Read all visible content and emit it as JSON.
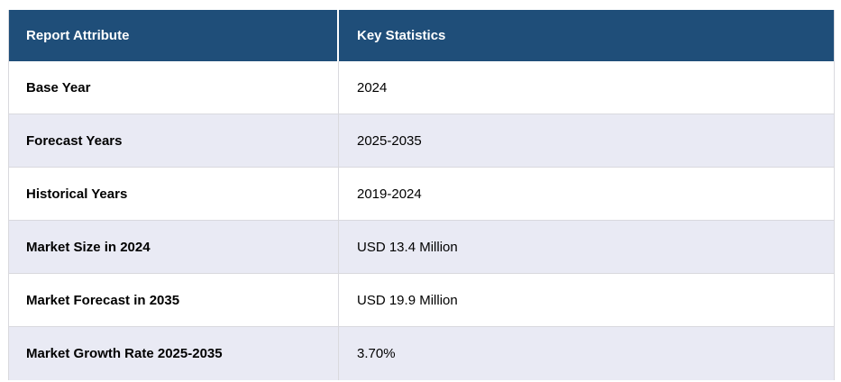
{
  "table": {
    "columns": [
      {
        "label": "Report Attribute"
      },
      {
        "label": "Key Statistics"
      }
    ],
    "rows": [
      {
        "attribute": "Base Year",
        "value": "2024"
      },
      {
        "attribute": "Forecast Years",
        "value": "2025-2035"
      },
      {
        "attribute": "Historical Years",
        "value": "2019-2024"
      },
      {
        "attribute": "Market Size in 2024",
        "value": "USD 13.4 Million"
      },
      {
        "attribute": "Market Forecast in 2035",
        "value": "USD 19.9 Million"
      },
      {
        "attribute": "Market Growth Rate 2025-2035",
        "value": "3.70%"
      }
    ],
    "colors": {
      "header_bg": "#1F4E79",
      "header_text": "#FFFFFF",
      "stripe_bg": "#E9EAF4",
      "row_bg": "#FFFFFF",
      "border": "#D9D9DE",
      "body_text": "#000000"
    }
  }
}
